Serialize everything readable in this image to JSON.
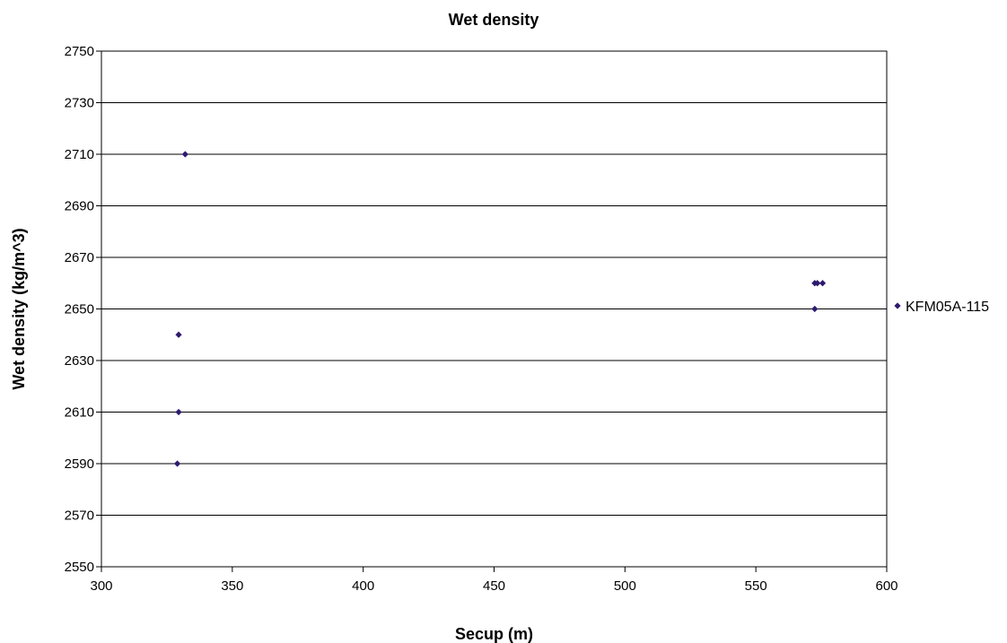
{
  "chart_data": {
    "type": "scatter",
    "title": "Wet density",
    "xlabel": "Secup (m)",
    "ylabel": "Wet density (kg/m^3)",
    "xlim": [
      300,
      600
    ],
    "ylim": [
      2550,
      2750
    ],
    "x_ticks": [
      300,
      350,
      400,
      450,
      500,
      550,
      600
    ],
    "y_ticks": [
      2550,
      2570,
      2590,
      2610,
      2630,
      2650,
      2670,
      2690,
      2710,
      2730,
      2750
    ],
    "grid": "horizontal",
    "legend_position": "right",
    "series": [
      {
        "name": "KFM05A-115",
        "color": "#2e1a6e",
        "marker": "diamond",
        "points": [
          {
            "x": 332.0,
            "y": 2710
          },
          {
            "x": 329.5,
            "y": 2640
          },
          {
            "x": 329.5,
            "y": 2610
          },
          {
            "x": 329.0,
            "y": 2590
          },
          {
            "x": 572.5,
            "y": 2660
          },
          {
            "x": 573.5,
            "y": 2660
          },
          {
            "x": 575.5,
            "y": 2660
          },
          {
            "x": 572.5,
            "y": 2650
          }
        ]
      }
    ]
  }
}
